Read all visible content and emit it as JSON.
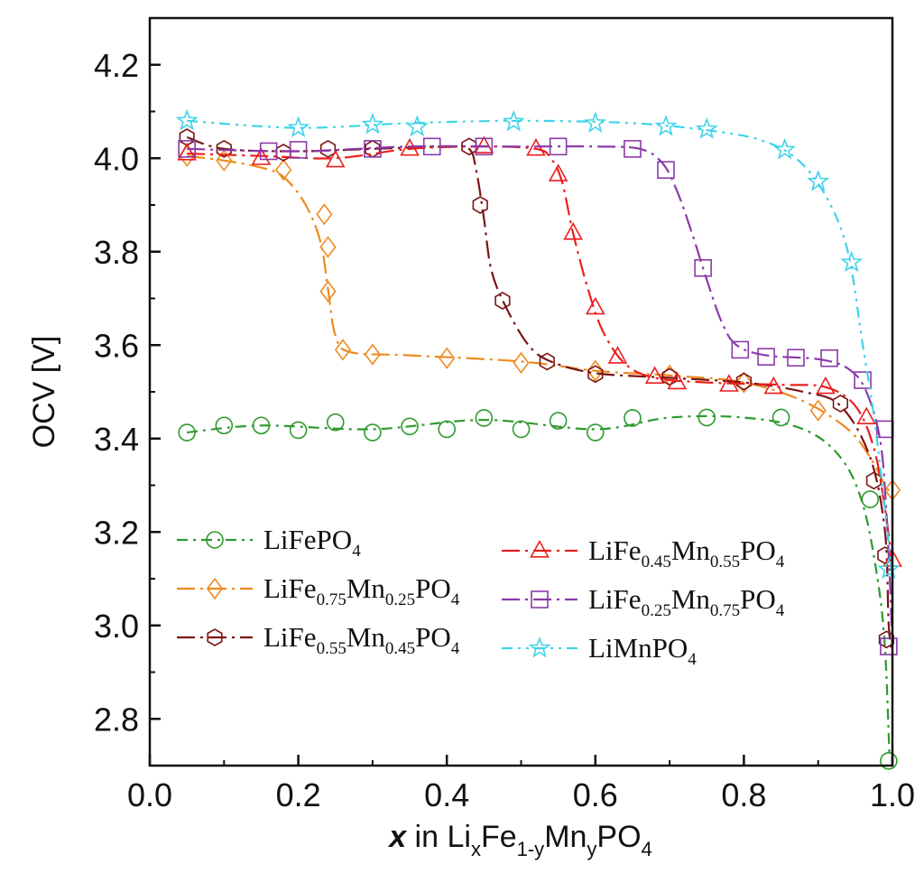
{
  "chart_data": {
    "type": "line",
    "title": "",
    "xlabel": {
      "main": "x",
      "mid": " in Li",
      "sub1": "x",
      "part2": "Fe",
      "sub2": "1-y",
      "part3": "Mn",
      "sub3": "y",
      "part4": "PO",
      "sub4": "4"
    },
    "ylabel": "OCV [V]",
    "xlim": [
      0.0,
      1.0
    ],
    "ylim": [
      2.7,
      4.3
    ],
    "x_ticks": [
      0.0,
      0.2,
      0.4,
      0.6,
      0.8,
      1.0
    ],
    "x_tick_labels": [
      "0.0",
      "0.2",
      "0.4",
      "0.6",
      "0.8",
      "1.0"
    ],
    "y_ticks": [
      2.8,
      3.0,
      3.2,
      3.4,
      3.6,
      3.8,
      4.0,
      4.2
    ],
    "y_tick_labels": [
      "2.8",
      "3.0",
      "3.2",
      "3.4",
      "3.6",
      "3.8",
      "4.0",
      "4.2"
    ],
    "grid": false,
    "series": [
      {
        "name": "LiFePO4",
        "legend": {
          "parts": [
            {
              "t": "LiFePO",
              "sub": false
            },
            {
              "t": "4",
              "sub": true
            }
          ]
        },
        "color": "#2f9a2f",
        "marker": "circle",
        "dash": "12 6 3 6",
        "curve": [
          [
            0.05,
            3.413
          ],
          [
            0.15,
            3.428
          ],
          [
            0.3,
            3.42
          ],
          [
            0.45,
            3.44
          ],
          [
            0.6,
            3.42
          ],
          [
            0.7,
            3.445
          ],
          [
            0.8,
            3.445
          ],
          [
            0.88,
            3.42
          ],
          [
            0.93,
            3.36
          ],
          [
            0.96,
            3.26
          ],
          [
            0.98,
            3.1
          ],
          [
            0.99,
            2.95
          ],
          [
            0.996,
            2.72
          ]
        ],
        "points": [
          [
            0.05,
            3.413
          ],
          [
            0.1,
            3.428
          ],
          [
            0.15,
            3.428
          ],
          [
            0.2,
            3.418
          ],
          [
            0.25,
            3.435
          ],
          [
            0.3,
            3.413
          ],
          [
            0.35,
            3.426
          ],
          [
            0.4,
            3.42
          ],
          [
            0.45,
            3.444
          ],
          [
            0.5,
            3.42
          ],
          [
            0.55,
            3.438
          ],
          [
            0.6,
            3.413
          ],
          [
            0.65,
            3.444
          ],
          [
            0.75,
            3.445
          ],
          [
            0.85,
            3.445
          ],
          [
            0.97,
            3.27
          ],
          [
            0.995,
            2.71
          ]
        ]
      },
      {
        "name": "LiFe0.75Mn0.25PO4",
        "legend": {
          "parts": [
            {
              "t": "LiFe",
              "sub": false
            },
            {
              "t": "0.75",
              "sub": true
            },
            {
              "t": "Mn",
              "sub": false
            },
            {
              "t": "0.25",
              "sub": true
            },
            {
              "t": "PO",
              "sub": false
            },
            {
              "t": "4",
              "sub": true
            }
          ]
        },
        "color": "#ee8a1e",
        "marker": "diamond",
        "dash": "20 6 3 6",
        "curve": [
          [
            0.05,
            4.005
          ],
          [
            0.1,
            3.995
          ],
          [
            0.15,
            3.98
          ],
          [
            0.18,
            3.96
          ],
          [
            0.21,
            3.9
          ],
          [
            0.23,
            3.82
          ],
          [
            0.24,
            3.72
          ],
          [
            0.25,
            3.62
          ],
          [
            0.27,
            3.585
          ],
          [
            0.35,
            3.578
          ],
          [
            0.5,
            3.565
          ],
          [
            0.6,
            3.545
          ],
          [
            0.7,
            3.535
          ],
          [
            0.8,
            3.52
          ],
          [
            0.88,
            3.48
          ],
          [
            0.94,
            3.42
          ],
          [
            0.97,
            3.36
          ],
          [
            0.99,
            3.3
          ],
          [
            1.0,
            3.28
          ]
        ],
        "points": [
          [
            0.05,
            4.005
          ],
          [
            0.1,
            3.995
          ],
          [
            0.18,
            3.975
          ],
          [
            0.235,
            3.88
          ],
          [
            0.24,
            3.81
          ],
          [
            0.24,
            3.715
          ],
          [
            0.26,
            3.59
          ],
          [
            0.3,
            3.58
          ],
          [
            0.4,
            3.572
          ],
          [
            0.5,
            3.562
          ],
          [
            0.6,
            3.545
          ],
          [
            0.7,
            3.535
          ],
          [
            0.8,
            3.52
          ],
          [
            0.9,
            3.46
          ],
          [
            1.0,
            3.29
          ]
        ]
      },
      {
        "name": "LiFe0.55Mn0.45PO4",
        "legend": {
          "parts": [
            {
              "t": "LiFe",
              "sub": false
            },
            {
              "t": "0.55",
              "sub": true
            },
            {
              "t": "Mn",
              "sub": false
            },
            {
              "t": "0.45",
              "sub": true
            },
            {
              "t": "PO",
              "sub": false
            },
            {
              "t": "4",
              "sub": true
            }
          ]
        },
        "color": "#7a1414",
        "marker": "hexagon",
        "dash": "20 6 3 6",
        "curve": [
          [
            0.05,
            4.045
          ],
          [
            0.1,
            4.02
          ],
          [
            0.2,
            4.015
          ],
          [
            0.3,
            4.02
          ],
          [
            0.4,
            4.025
          ],
          [
            0.43,
            4.02
          ],
          [
            0.44,
            3.97
          ],
          [
            0.45,
            3.87
          ],
          [
            0.46,
            3.76
          ],
          [
            0.48,
            3.68
          ],
          [
            0.51,
            3.6
          ],
          [
            0.54,
            3.565
          ],
          [
            0.6,
            3.54
          ],
          [
            0.7,
            3.53
          ],
          [
            0.8,
            3.52
          ],
          [
            0.88,
            3.5
          ],
          [
            0.93,
            3.47
          ],
          [
            0.97,
            3.36
          ],
          [
            0.99,
            3.2
          ],
          [
            0.995,
            3.0
          ],
          [
            1.0,
            2.94
          ]
        ],
        "points": [
          [
            0.05,
            4.045
          ],
          [
            0.1,
            4.02
          ],
          [
            0.18,
            4.012
          ],
          [
            0.24,
            4.02
          ],
          [
            0.3,
            4.02
          ],
          [
            0.43,
            4.025
          ],
          [
            0.445,
            3.9
          ],
          [
            0.475,
            3.695
          ],
          [
            0.535,
            3.565
          ],
          [
            0.6,
            3.538
          ],
          [
            0.7,
            3.532
          ],
          [
            0.8,
            3.522
          ],
          [
            0.93,
            3.475
          ],
          [
            0.975,
            3.31
          ],
          [
            0.99,
            3.15
          ],
          [
            0.992,
            2.97
          ]
        ]
      },
      {
        "name": "LiFe0.45Mn0.55PO4",
        "legend": {
          "parts": [
            {
              "t": "LiFe",
              "sub": false
            },
            {
              "t": "0.45",
              "sub": true
            },
            {
              "t": "Mn",
              "sub": false
            },
            {
              "t": "0.55",
              "sub": true
            },
            {
              "t": "PO",
              "sub": false
            },
            {
              "t": "4",
              "sub": true
            }
          ]
        },
        "color": "#ee1c1c",
        "marker": "triangle",
        "dash": "20 6 3 6",
        "curve": [
          [
            0.05,
            4.01
          ],
          [
            0.15,
            4.005
          ],
          [
            0.25,
            4.0
          ],
          [
            0.35,
            4.02
          ],
          [
            0.45,
            4.025
          ],
          [
            0.52,
            4.02
          ],
          [
            0.54,
            4.0
          ],
          [
            0.555,
            3.95
          ],
          [
            0.57,
            3.84
          ],
          [
            0.59,
            3.72
          ],
          [
            0.61,
            3.63
          ],
          [
            0.64,
            3.56
          ],
          [
            0.68,
            3.53
          ],
          [
            0.75,
            3.52
          ],
          [
            0.85,
            3.515
          ],
          [
            0.91,
            3.51
          ],
          [
            0.95,
            3.47
          ],
          [
            0.975,
            3.38
          ],
          [
            0.99,
            3.25
          ],
          [
            1.0,
            3.13
          ]
        ],
        "points": [
          [
            0.05,
            4.01
          ],
          [
            0.15,
            4.0
          ],
          [
            0.25,
            3.995
          ],
          [
            0.35,
            4.02
          ],
          [
            0.45,
            4.025
          ],
          [
            0.52,
            4.02
          ],
          [
            0.55,
            3.965
          ],
          [
            0.57,
            3.84
          ],
          [
            0.6,
            3.68
          ],
          [
            0.63,
            3.575
          ],
          [
            0.68,
            3.532
          ],
          [
            0.71,
            3.52
          ],
          [
            0.78,
            3.515
          ],
          [
            0.84,
            3.51
          ],
          [
            0.91,
            3.51
          ],
          [
            0.965,
            3.445
          ],
          [
            1.0,
            3.14
          ]
        ]
      },
      {
        "name": "LiFe0.25Mn0.75PO4",
        "legend": {
          "parts": [
            {
              "t": "LiFe",
              "sub": false
            },
            {
              "t": "0.25",
              "sub": true
            },
            {
              "t": "Mn",
              "sub": false
            },
            {
              "t": "0.75",
              "sub": true
            },
            {
              "t": "PO",
              "sub": false
            },
            {
              "t": "4",
              "sub": true
            }
          ]
        },
        "color": "#8a3aa8",
        "marker": "square",
        "dash": "20 6 3 6",
        "curve": [
          [
            0.05,
            4.02
          ],
          [
            0.2,
            4.015
          ],
          [
            0.35,
            4.025
          ],
          [
            0.5,
            4.025
          ],
          [
            0.6,
            4.025
          ],
          [
            0.66,
            4.02
          ],
          [
            0.69,
            3.99
          ],
          [
            0.71,
            3.93
          ],
          [
            0.73,
            3.84
          ],
          [
            0.75,
            3.74
          ],
          [
            0.77,
            3.65
          ],
          [
            0.79,
            3.6
          ],
          [
            0.83,
            3.578
          ],
          [
            0.9,
            3.57
          ],
          [
            0.94,
            3.55
          ],
          [
            0.965,
            3.5
          ],
          [
            0.985,
            3.38
          ],
          [
            0.995,
            3.15
          ],
          [
            1.0,
            2.95
          ]
        ],
        "points": [
          [
            0.05,
            4.02
          ],
          [
            0.16,
            4.015
          ],
          [
            0.2,
            4.018
          ],
          [
            0.3,
            4.02
          ],
          [
            0.38,
            4.025
          ],
          [
            0.45,
            4.025
          ],
          [
            0.55,
            4.025
          ],
          [
            0.65,
            4.02
          ],
          [
            0.695,
            3.975
          ],
          [
            0.745,
            3.765
          ],
          [
            0.795,
            3.59
          ],
          [
            0.83,
            3.575
          ],
          [
            0.87,
            3.573
          ],
          [
            0.915,
            3.572
          ],
          [
            0.96,
            3.525
          ],
          [
            0.99,
            3.42
          ],
          [
            0.995,
            2.955
          ]
        ]
      },
      {
        "name": "LiMnPO4",
        "legend": {
          "parts": [
            {
              "t": "LiMnPO",
              "sub": false
            },
            {
              "t": "4",
              "sub": true
            }
          ]
        },
        "color": "#3fd4e8",
        "marker": "star",
        "dash": "12 6 3 6 3 6",
        "curve": [
          [
            0.05,
            4.08
          ],
          [
            0.2,
            4.065
          ],
          [
            0.35,
            4.075
          ],
          [
            0.5,
            4.08
          ],
          [
            0.65,
            4.075
          ],
          [
            0.75,
            4.06
          ],
          [
            0.82,
            4.04
          ],
          [
            0.87,
            4.0
          ],
          [
            0.91,
            3.92
          ],
          [
            0.94,
            3.8
          ],
          [
            0.96,
            3.6
          ],
          [
            0.975,
            3.45
          ],
          [
            0.99,
            3.25
          ],
          [
            1.0,
            3.1
          ]
        ],
        "points": [
          [
            0.05,
            4.08
          ],
          [
            0.2,
            4.065
          ],
          [
            0.3,
            4.072
          ],
          [
            0.36,
            4.067
          ],
          [
            0.49,
            4.078
          ],
          [
            0.6,
            4.075
          ],
          [
            0.695,
            4.068
          ],
          [
            0.75,
            4.062
          ],
          [
            0.855,
            4.018
          ],
          [
            0.9,
            3.95
          ],
          [
            0.945,
            3.777
          ],
          [
            0.995,
            3.12
          ]
        ]
      }
    ],
    "legend": {
      "placement": "lower-left",
      "columns": 2
    }
  }
}
